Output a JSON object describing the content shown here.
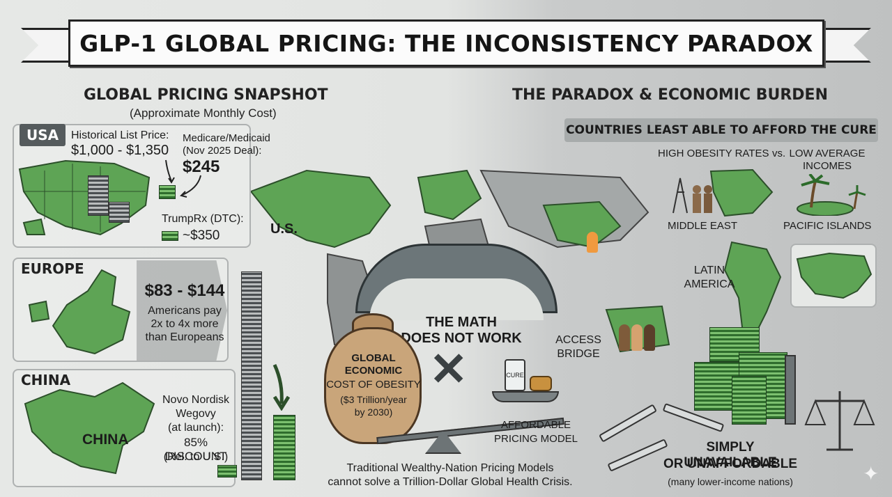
{
  "title": "GLP-1 GLOBAL PRICING: THE INCONSISTENCY PARADOX",
  "left": {
    "heading": "GLOBAL PRICING SNAPSHOT",
    "subheading": "(Approximate Monthly Cost)",
    "usa": {
      "tag": "USA",
      "historical_label": "Historical List Price:",
      "historical_value": "$1,000 - $1,350",
      "medicare_label_1": "Medicare/Medicaid",
      "medicare_label_2": "(Nov 2025 Deal):",
      "medicare_value": "$245",
      "trumprx_label": "TrumpRx (DTC):",
      "trumprx_value": "~$350"
    },
    "europe": {
      "tag": "EUROPE",
      "price": "$83 - $144",
      "note_1": "Americans pay",
      "note_2": "2x to 4x more",
      "note_3": "than Europeans"
    },
    "china": {
      "tag": "CHINA",
      "map_label": "CHINA",
      "line_1": "Novo Nordisk",
      "line_2": "Wegovy",
      "line_3": "(at launch):",
      "line_4": "85% DISCOUNT",
      "line_5": "(Rel. to U.S.)"
    }
  },
  "center": {
    "us_label": "U.S.",
    "math_1": "THE MATH",
    "math_2": "DOES NOT WORK",
    "bag_1": "GLOBAL",
    "bag_2": "ECONOMIC",
    "bag_3": "COST OF OBESITY",
    "bag_4": "($3 Trillion/year",
    "bag_5": "by 2030)",
    "cure_label": "CURE",
    "affordable_1": "AFFORDABLE",
    "affordable_2": "PRICING MODEL",
    "access_1": "ACCESS",
    "access_2": "BRIDGE",
    "footer_1": "Traditional Wealthy-Nation Pricing Models",
    "footer_2": "cannot solve a Trillion-Dollar Global Health Crisis."
  },
  "right": {
    "heading": "THE PARADOX & ECONOMIC BURDEN",
    "bar": "COUNTRIES LEAST ABLE TO AFFORD THE CURE",
    "high_obesity": "HIGH OBESITY RATES",
    "vs": "vs.",
    "low_income_1": "LOW AVERAGE",
    "low_income_2": "INCOMES",
    "middle_east": "MIDDLE EAST",
    "pacific": "PACIFIC ISLANDS",
    "latin_1": "LATIN",
    "latin_2": "AMERICA",
    "unavailable_1": "SIMPLY UNAVAILABLE",
    "unavailable_2": "OR UNAFFORDABLE",
    "unavailable_3": "(many lower-income nations)"
  },
  "colors": {
    "map_green": "#5ea455",
    "map_gray": "#8f9393",
    "banner": "#fbfbfb",
    "bag": "#c9a57a"
  },
  "icons": [
    "money-stack-icon",
    "cash-stack-icon",
    "bridge-icon",
    "money-bag-icon",
    "scale-icon",
    "syringe-icon",
    "oil-rig-icon",
    "palm-tree-icon",
    "people-icon",
    "arrow-icon"
  ]
}
